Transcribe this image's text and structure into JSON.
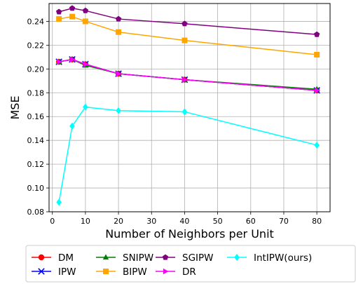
{
  "chart_data": {
    "type": "line",
    "xlabel": "Number of Neighbors per Unit",
    "ylabel": "MSE",
    "xlim": [
      -1,
      84
    ],
    "ylim": [
      0.08,
      0.255
    ],
    "x_ticks": [
      0,
      10,
      20,
      30,
      40,
      50,
      60,
      70,
      80
    ],
    "y_ticks": [
      0.08,
      0.1,
      0.12,
      0.14,
      0.16,
      0.18,
      0.2,
      0.22,
      0.24
    ],
    "x_tick_labels": [
      "0",
      "10",
      "20",
      "30",
      "40",
      "50",
      "60",
      "70",
      "80"
    ],
    "y_tick_labels": [
      "0.08",
      "0.10",
      "0.12",
      "0.14",
      "0.16",
      "0.18",
      "0.20",
      "0.22",
      "0.24"
    ],
    "grid": true,
    "legend_position": "bottom",
    "x": [
      2,
      6,
      10,
      20,
      40,
      80
    ],
    "series": [
      {
        "name": "DM",
        "color": "#ff0000",
        "marker": "circle",
        "values": [
          0.206,
          0.208,
          0.204,
          0.196,
          0.191,
          0.182
        ]
      },
      {
        "name": "IPW",
        "color": "#0000ff",
        "marker": "x",
        "values": [
          0.206,
          0.208,
          0.204,
          0.196,
          0.191,
          0.182
        ]
      },
      {
        "name": "SNIPW",
        "color": "#008000",
        "marker": "triangle-up",
        "values": [
          0.206,
          0.208,
          0.203,
          0.196,
          0.191,
          0.183
        ]
      },
      {
        "name": "BIPW",
        "color": "#ffa500",
        "marker": "square",
        "values": [
          0.242,
          0.244,
          0.24,
          0.231,
          0.224,
          0.212
        ]
      },
      {
        "name": "SGIPW",
        "color": "#800080",
        "marker": "pentagon",
        "values": [
          0.248,
          0.251,
          0.249,
          0.242,
          0.238,
          0.229
        ]
      },
      {
        "name": "DR",
        "color": "#ff00ff",
        "marker": "triangle-right",
        "values": [
          0.206,
          0.208,
          0.204,
          0.196,
          0.191,
          0.182
        ]
      },
      {
        "name": "IntIPW(ours)",
        "color": "#00ffff",
        "marker": "diamond",
        "values": [
          0.088,
          0.152,
          0.168,
          0.165,
          0.164,
          0.136
        ]
      }
    ]
  }
}
